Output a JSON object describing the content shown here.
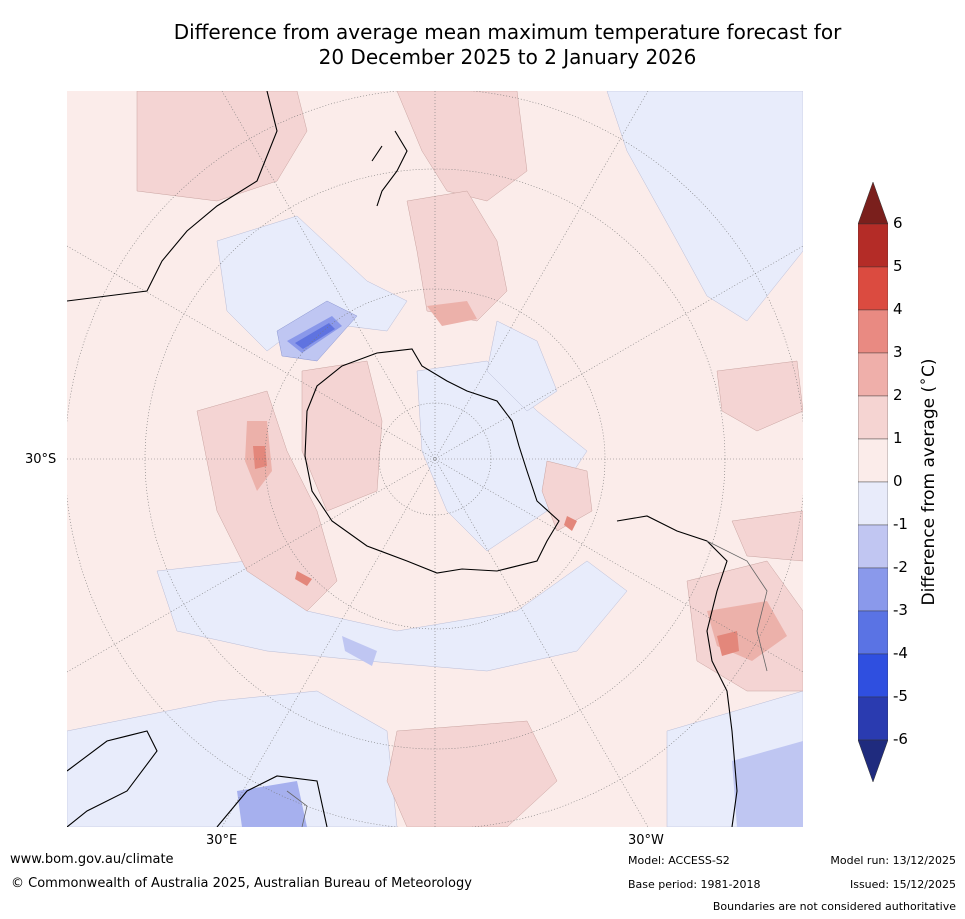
{
  "title": {
    "line1": "Difference from average mean maximum temperature forecast for",
    "line2": "20 December 2025 to 2 January 2026"
  },
  "map": {
    "projection": "south-polar-stereographic",
    "lat_label": "30°S",
    "lon_label_left": "30°E",
    "lon_label_right": "30°W",
    "colors": {
      "ocean_neutral": "#fbecea",
      "warm_1": "#f4d4d3",
      "warm_2": "#ecb1aa",
      "warm_3": "#e3877b",
      "cool_1": "#e8ecfb",
      "cool_2": "#bfc6f2",
      "cool_3": "#8a98ea",
      "cool_4": "#5f73e0",
      "coast": "#000000",
      "graticule": "#777777"
    }
  },
  "colorbar": {
    "label": "Difference from average (°C)",
    "label_main": "Difference from average (",
    "label_unit": "C)",
    "ticks": [
      "6",
      "5",
      "4",
      "3",
      "2",
      "1",
      "0",
      "-1",
      "-2",
      "-3",
      "-4",
      "-5",
      "-6"
    ],
    "levels": [
      {
        "color": "#b42c27"
      },
      {
        "color": "#db4b40"
      },
      {
        "color": "#e98a82"
      },
      {
        "color": "#efafaa"
      },
      {
        "color": "#f5d4d2"
      },
      {
        "color": "#fbecea"
      },
      {
        "color": "#e8ebfa"
      },
      {
        "color": "#c1c6f2"
      },
      {
        "color": "#8a99eb"
      },
      {
        "color": "#5a73e4"
      },
      {
        "color": "#2f4fe0"
      },
      {
        "color": "#2a3bb0"
      }
    ],
    "top_extend_color": "#7a1f1c",
    "bottom_extend_color": "#1f2b7e"
  },
  "footer": {
    "url": "www.bom.gov.au/climate",
    "copyright": "© Commonwealth of Australia 2025, Australian Bureau of Meteorology",
    "model": "Model: ACCESS-S2",
    "base_period": "Base period: 1981-2018",
    "model_run": "Model run: 13/12/2025",
    "issued": "Issued: 15/12/2025",
    "boundaries": "Boundaries are not considered authoritative"
  }
}
